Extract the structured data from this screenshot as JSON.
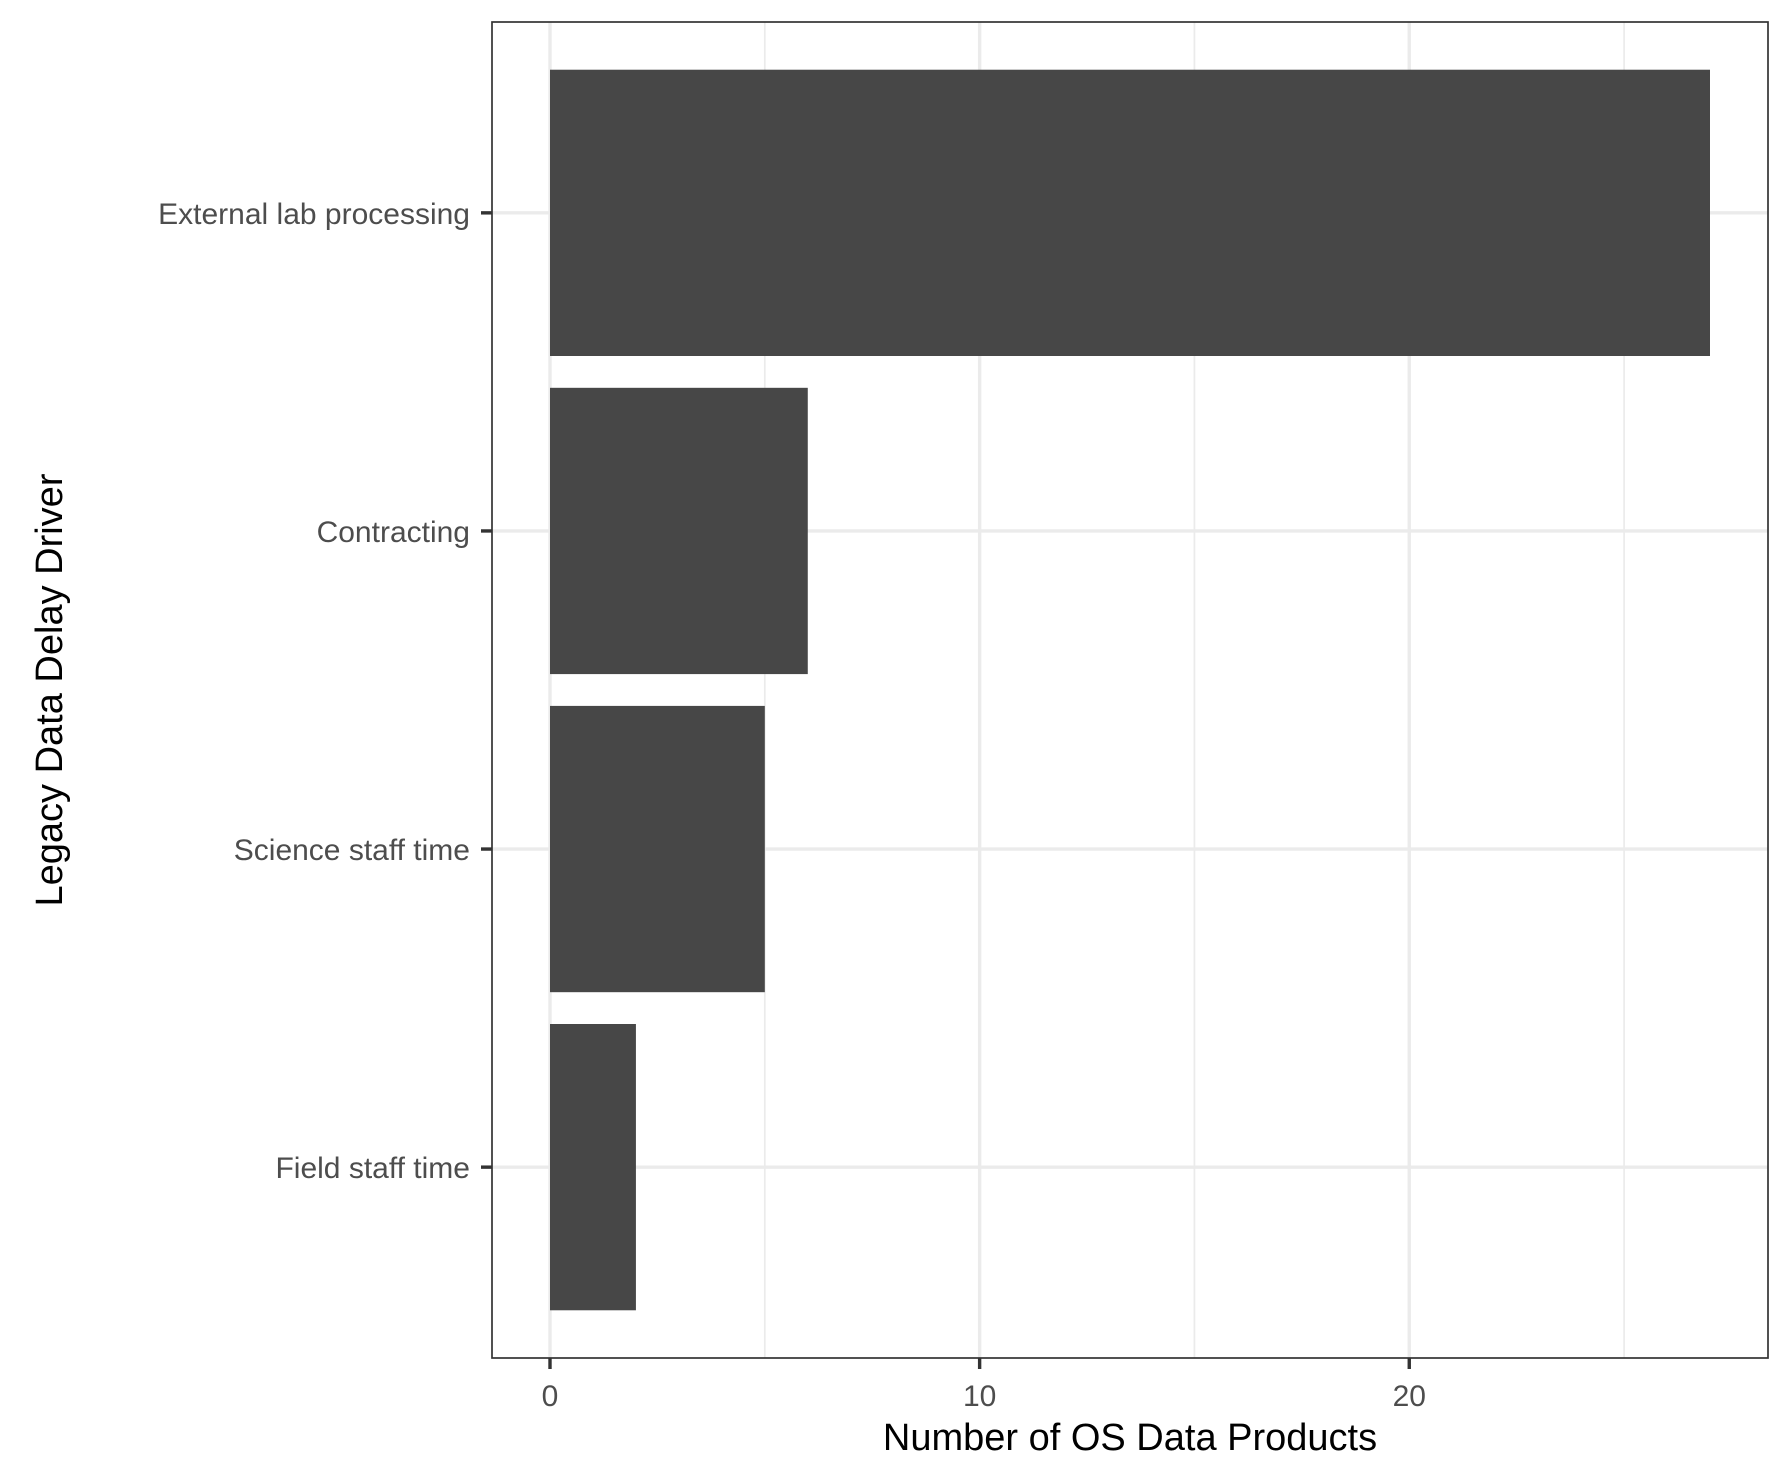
{
  "chart_data": {
    "type": "bar",
    "orientation": "horizontal",
    "categories": [
      "External lab processing",
      "Contracting",
      "Science staff time",
      "Field staff time"
    ],
    "values": [
      27,
      6,
      5,
      2
    ],
    "xlabel": "Number of OS Data Products",
    "ylabel": "Legacy Data Delay Driver",
    "xlim": [
      -1.35,
      28.35
    ],
    "xticks": [
      0,
      10,
      20
    ],
    "xtick_labels": [
      "0",
      "10",
      "20"
    ],
    "grid": true,
    "legend": "none",
    "colors": {
      "bar": "#474747",
      "grid": "#ebebeb",
      "border": "#333333",
      "tick_label": "#4d4d4d",
      "axis_title": "#000000"
    }
  }
}
